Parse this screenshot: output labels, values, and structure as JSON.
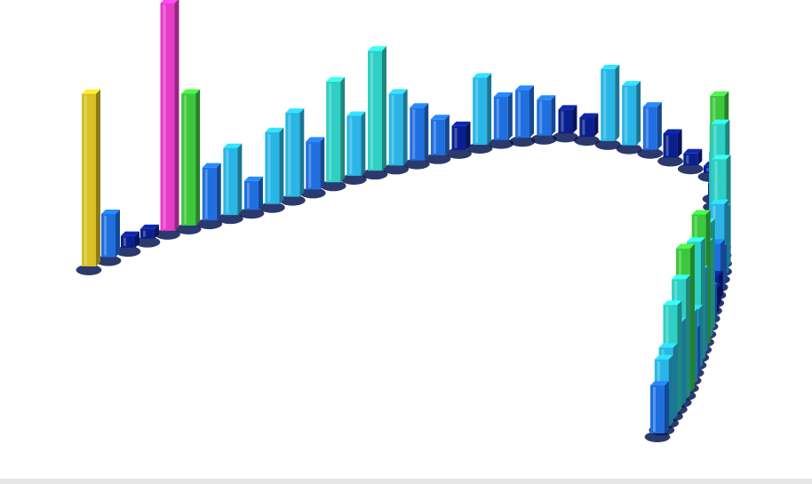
{
  "chart_data": {
    "type": "bar",
    "variant": "3d-bars-along-path",
    "title": "",
    "xlabel": "",
    "ylabel": "",
    "grid": false,
    "legend": "none",
    "axes_visible": false,
    "colors": {
      "low": "#0a1f8f",
      "mid_low": "#1f6fe0",
      "mid": "#29b6e6",
      "mid_high": "#2ecfc4",
      "high": "#3cc83c",
      "very_high": "#d9c024",
      "peak": "#e63cc8"
    },
    "color_scale": [
      {
        "max": 0.12,
        "color": "#0a1f8f"
      },
      {
        "max": 0.25,
        "color": "#1f6fe0"
      },
      {
        "max": 0.4,
        "color": "#29b6e6"
      },
      {
        "max": 0.55,
        "color": "#2ecfc4"
      },
      {
        "max": 0.7,
        "color": "#3cc83c"
      },
      {
        "max": 0.85,
        "color": "#d9c024"
      },
      {
        "max": 1.01,
        "color": "#e63cc8"
      }
    ],
    "series": [
      {
        "values": [
          0.72,
          0.18,
          0.05,
          0.04,
          0.95,
          0.55,
          0.22,
          0.28,
          0.12,
          0.3,
          0.35,
          0.2,
          0.42,
          0.25,
          0.5,
          0.3,
          0.22,
          0.15,
          0.1,
          0.28,
          0.18,
          0.2,
          0.15,
          0.1,
          0.08,
          0.3,
          0.25,
          0.18,
          0.1,
          0.05,
          0.03
        ]
      },
      {
        "values": [
          0.05,
          0.1,
          0.25,
          0.4,
          0.55,
          0.38,
          0.5,
          0.3,
          0.42,
          0.25,
          0.3,
          0.15,
          0.2,
          0.1,
          0.08,
          0.05,
          0.15,
          0.45,
          0.4,
          0.55,
          0.35,
          0.5,
          0.25,
          0.2,
          0.3,
          0.6,
          0.5,
          0.35,
          0.45,
          0.3,
          0.28,
          0.2
        ]
      }
    ]
  }
}
